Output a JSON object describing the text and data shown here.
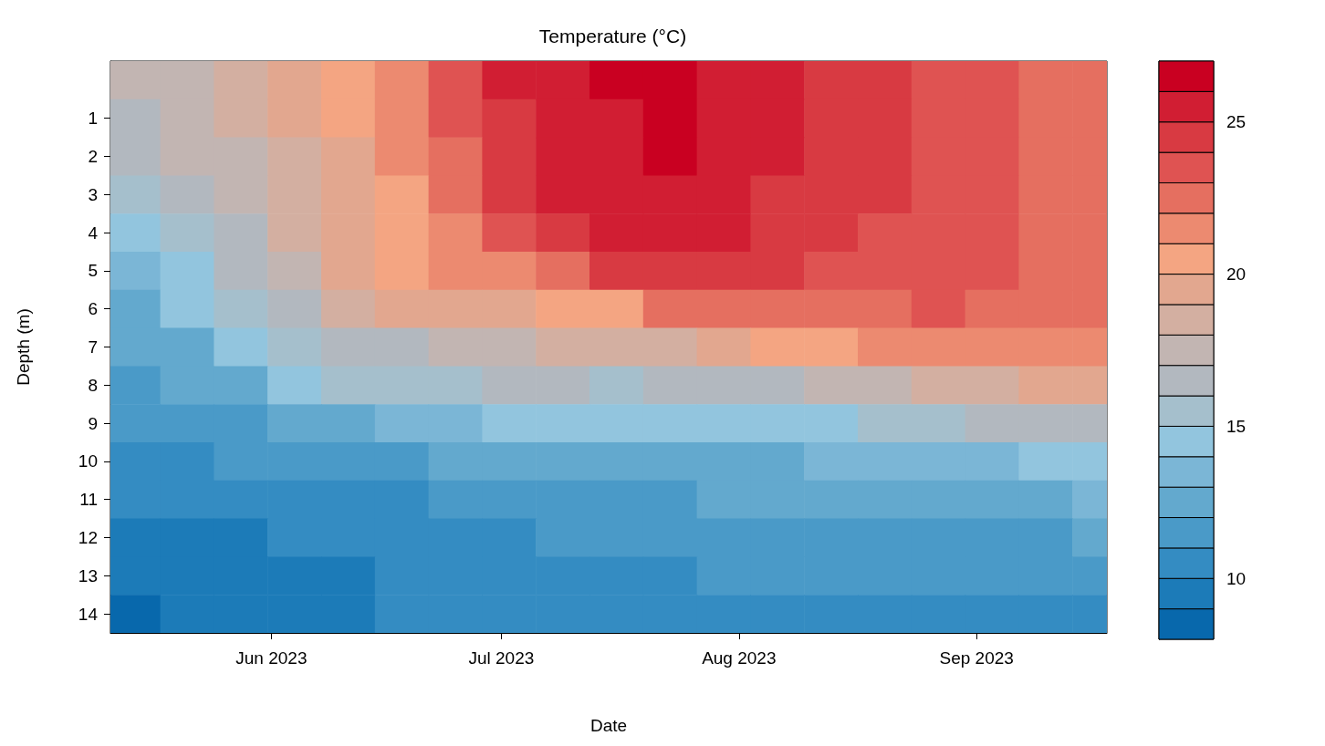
{
  "chart_data": {
    "type": "heatmap",
    "title": "Temperature (°C)",
    "xlabel": "Date",
    "ylabel": "Depth (m)",
    "x": [
      "2023-05-14",
      "2023-05-21",
      "2023-05-28",
      "2023-06-04",
      "2023-06-11",
      "2023-06-18",
      "2023-06-25",
      "2023-07-02",
      "2023-07-09",
      "2023-07-16",
      "2023-07-23",
      "2023-07-30",
      "2023-08-06",
      "2023-08-13",
      "2023-08-20",
      "2023-08-27",
      "2023-09-03",
      "2023-09-10",
      "2023-09-17"
    ],
    "xlim": [
      "2023-05-11",
      "2023-09-18"
    ],
    "xticks": [
      {
        "value": "2023-06-01",
        "label": "Jun 2023"
      },
      {
        "value": "2023-07-01",
        "label": "Jul 2023"
      },
      {
        "value": "2023-08-01",
        "label": "Aug 2023"
      },
      {
        "value": "2023-09-01",
        "label": "Sep 2023"
      }
    ],
    "y_categories": [
      null,
      "1",
      "2",
      "3",
      "4",
      "5",
      "6",
      "7",
      "8",
      "9",
      "10",
      "11",
      "12",
      "13",
      "14"
    ],
    "cells": [
      [
        17.5,
        17.5,
        18.5,
        19.5,
        20.5,
        21.5,
        23.5,
        25.5,
        25.5,
        26.5,
        26.5,
        25.5,
        25.5,
        24.5,
        24.5,
        23.5,
        23.5,
        22.5,
        22.5
      ],
      [
        16.5,
        17.5,
        18.5,
        19.5,
        20.5,
        21.5,
        23.5,
        24.5,
        25.5,
        25.5,
        26.5,
        25.5,
        25.5,
        24.5,
        24.5,
        23.5,
        23.5,
        22.5,
        22.5
      ],
      [
        16.5,
        17.5,
        17.5,
        18.5,
        19.5,
        21.5,
        22.5,
        24.5,
        25.5,
        25.5,
        26.5,
        25.5,
        25.5,
        24.5,
        24.5,
        23.5,
        23.5,
        22.5,
        22.5
      ],
      [
        15.5,
        16.5,
        17.5,
        18.5,
        19.5,
        20.5,
        22.5,
        24.5,
        25.5,
        25.5,
        25.5,
        25.5,
        24.5,
        24.5,
        24.5,
        23.5,
        23.5,
        22.5,
        22.5
      ],
      [
        14.5,
        15.5,
        16.5,
        18.5,
        19.5,
        20.5,
        21.5,
        23.5,
        24.5,
        25.5,
        25.5,
        25.5,
        24.5,
        24.5,
        23.5,
        23.5,
        23.5,
        22.5,
        22.5
      ],
      [
        13.5,
        14.5,
        16.5,
        17.5,
        19.5,
        20.5,
        21.5,
        21.5,
        22.5,
        24.5,
        24.5,
        24.5,
        24.5,
        23.5,
        23.5,
        23.5,
        23.5,
        22.5,
        22.5
      ],
      [
        12.5,
        14.5,
        15.5,
        16.5,
        18.5,
        19.5,
        19.5,
        19.5,
        20.5,
        20.5,
        22.5,
        22.5,
        22.5,
        22.5,
        22.5,
        23.5,
        22.5,
        22.5,
        22.5
      ],
      [
        12.5,
        12.5,
        14.5,
        15.5,
        16.5,
        16.5,
        17.5,
        17.5,
        18.5,
        18.5,
        18.5,
        19.5,
        20.5,
        20.5,
        21.5,
        21.5,
        21.5,
        21.5,
        21.5
      ],
      [
        11.5,
        12.5,
        12.5,
        14.5,
        15.5,
        15.5,
        15.5,
        16.5,
        16.5,
        15.5,
        16.5,
        16.5,
        16.5,
        17.5,
        17.5,
        18.5,
        18.5,
        19.5,
        19.5
      ],
      [
        11.5,
        11.5,
        11.5,
        12.5,
        12.5,
        13.5,
        13.5,
        14.5,
        14.5,
        14.5,
        14.5,
        14.5,
        14.5,
        14.5,
        15.5,
        15.5,
        16.5,
        16.5,
        16.5
      ],
      [
        10.5,
        10.5,
        11.5,
        11.5,
        11.5,
        11.5,
        12.5,
        12.5,
        12.5,
        12.5,
        12.5,
        12.5,
        12.5,
        13.5,
        13.5,
        13.5,
        13.5,
        14.5,
        14.5
      ],
      [
        10.5,
        10.5,
        10.5,
        10.5,
        10.5,
        10.5,
        11.5,
        11.5,
        11.5,
        11.5,
        11.5,
        12.5,
        12.5,
        12.5,
        12.5,
        12.5,
        12.5,
        12.5,
        13.5
      ],
      [
        9.5,
        9.5,
        9.5,
        10.5,
        10.5,
        10.5,
        10.5,
        10.5,
        11.5,
        11.5,
        11.5,
        11.5,
        11.5,
        11.5,
        11.5,
        11.5,
        11.5,
        11.5,
        12.5
      ],
      [
        9.5,
        9.5,
        9.5,
        9.5,
        9.5,
        10.5,
        10.5,
        10.5,
        10.5,
        10.5,
        10.5,
        11.5,
        11.5,
        11.5,
        11.5,
        11.5,
        11.5,
        11.5,
        11.5
      ],
      [
        8.5,
        9.5,
        9.5,
        9.5,
        9.5,
        10.5,
        10.5,
        10.5,
        10.5,
        10.5,
        10.5,
        10.5,
        10.5,
        10.5,
        10.5,
        10.5,
        10.5,
        10.5,
        10.5
      ]
    ],
    "clim": [
      8,
      27
    ],
    "cticks": [
      10,
      15,
      20,
      25
    ],
    "colors": [
      "#0868ac",
      "#1c7bb8",
      "#348cc2",
      "#4a9ac8",
      "#63a9ce",
      "#7bb6d6",
      "#92c5de",
      "#a5bfcc",
      "#b2b8bf",
      "#c2b5b2",
      "#d3afa1",
      "#e2a78f",
      "#f4a582",
      "#ec8a70",
      "#e56f60",
      "#df5352",
      "#d83a42",
      "#d11e33",
      "#c90021"
    ]
  }
}
